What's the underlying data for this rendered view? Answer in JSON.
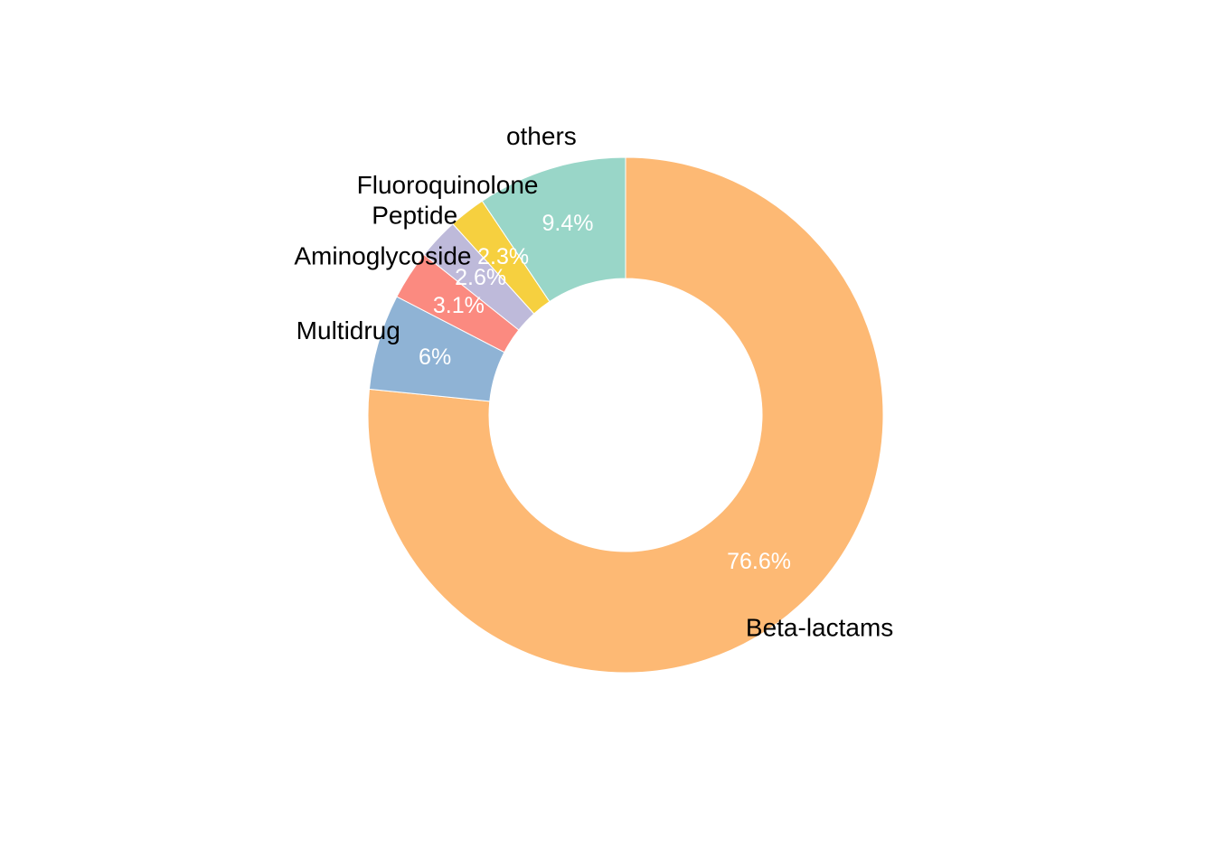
{
  "chart_data": {
    "type": "pie",
    "donut": true,
    "slices": [
      {
        "label": "Beta-lactams",
        "value": 76.6,
        "value_label": "76.6%",
        "color": "#FDB974"
      },
      {
        "label": "Multidrug",
        "value": 6.0,
        "value_label": "6%",
        "color": "#8FB3D5"
      },
      {
        "label": "Aminoglycoside",
        "value": 3.1,
        "value_label": "3.1%",
        "color": "#FB8A80"
      },
      {
        "label": "Peptide",
        "value": 2.6,
        "value_label": "2.6%",
        "color": "#BEBADA"
      },
      {
        "label": "Fluoroquinolone",
        "value": 2.3,
        "value_label": "2.3%",
        "color": "#F6D03F"
      },
      {
        "label": "others",
        "value": 9.4,
        "value_label": "9.4%",
        "color": "#99D6C8"
      }
    ],
    "start_angle": "12 o'clock",
    "direction": "clockwise",
    "legend": "none"
  }
}
